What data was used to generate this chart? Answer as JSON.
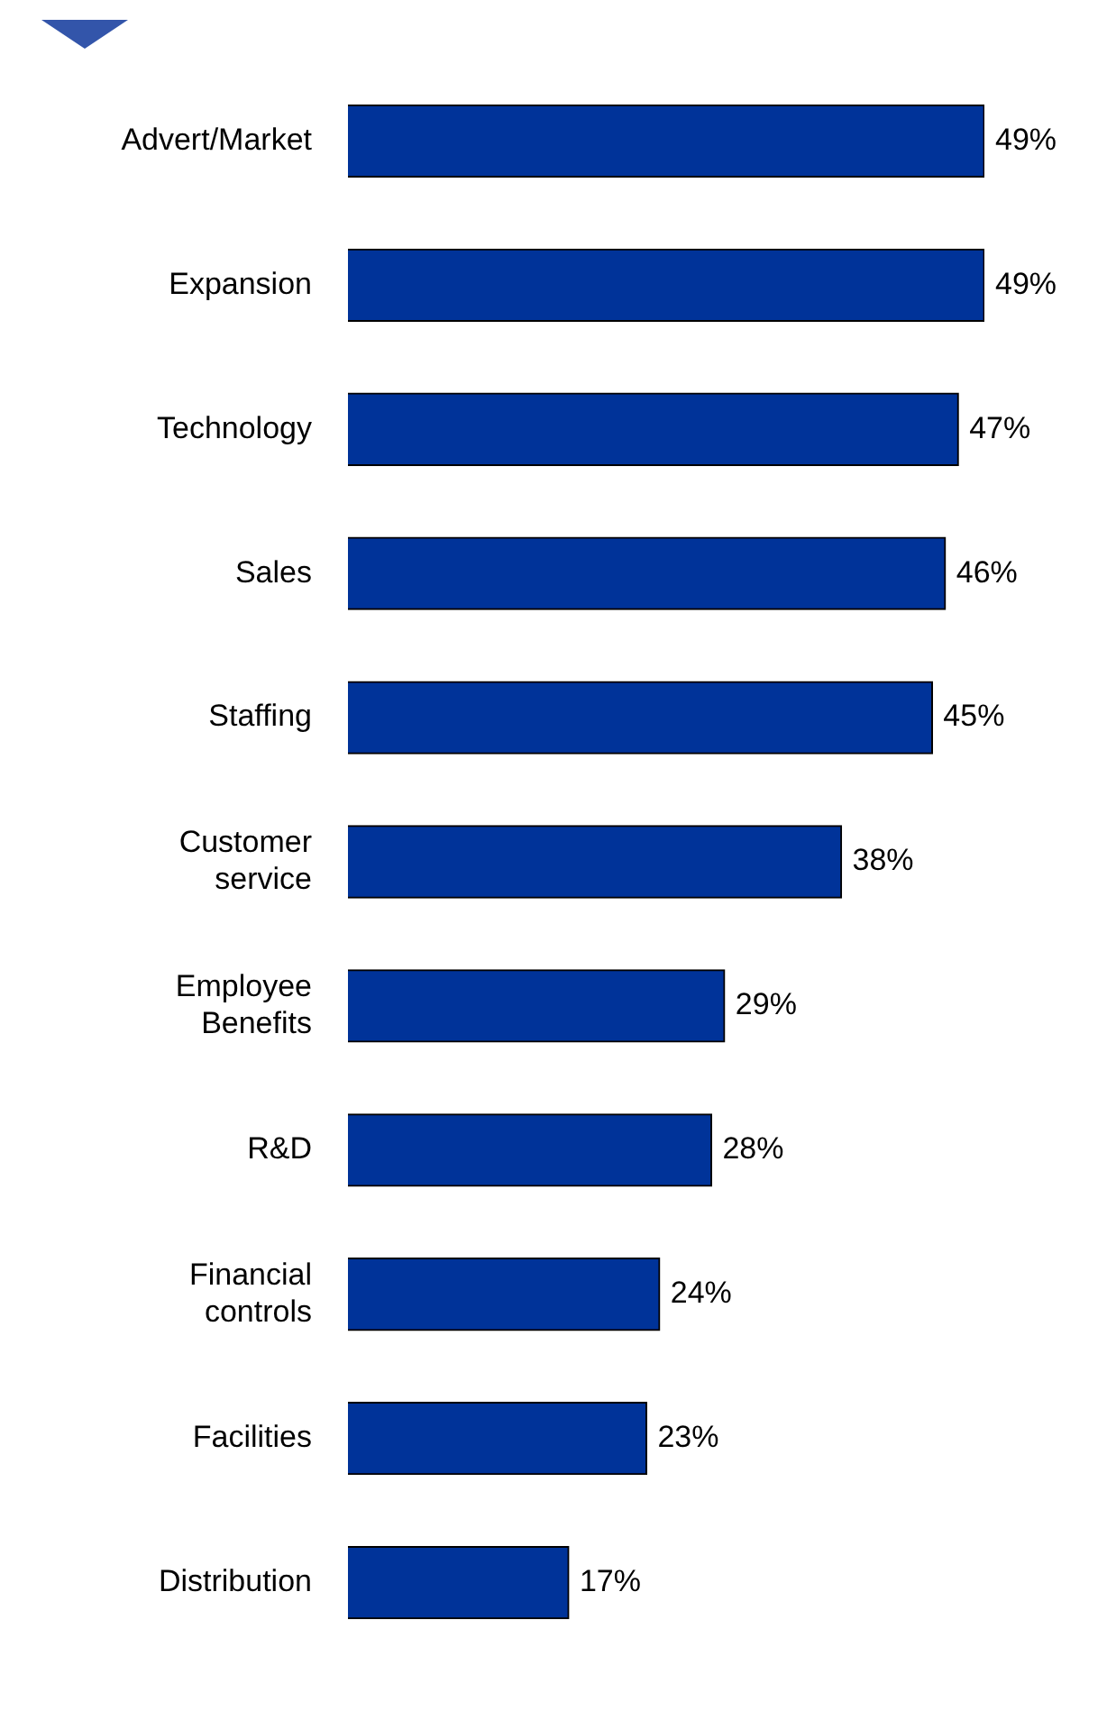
{
  "chart_data": {
    "type": "bar",
    "orientation": "horizontal",
    "legend": false,
    "categories": [
      "Advert/Market",
      "Expansion",
      "Technology",
      "Sales",
      "Staffing",
      "Customer service",
      "Employee Benefits",
      "R&D",
      "Financial controls",
      "Facilities",
      "Distribution"
    ],
    "values": [
      49,
      49,
      47,
      46,
      45,
      38,
      29,
      28,
      24,
      23,
      17
    ],
    "value_labels": [
      "49%",
      "49%",
      "47%",
      "46%",
      "45%",
      "38%",
      "29%",
      "28%",
      "24%",
      "23%",
      "17%"
    ],
    "color": "#003399"
  }
}
